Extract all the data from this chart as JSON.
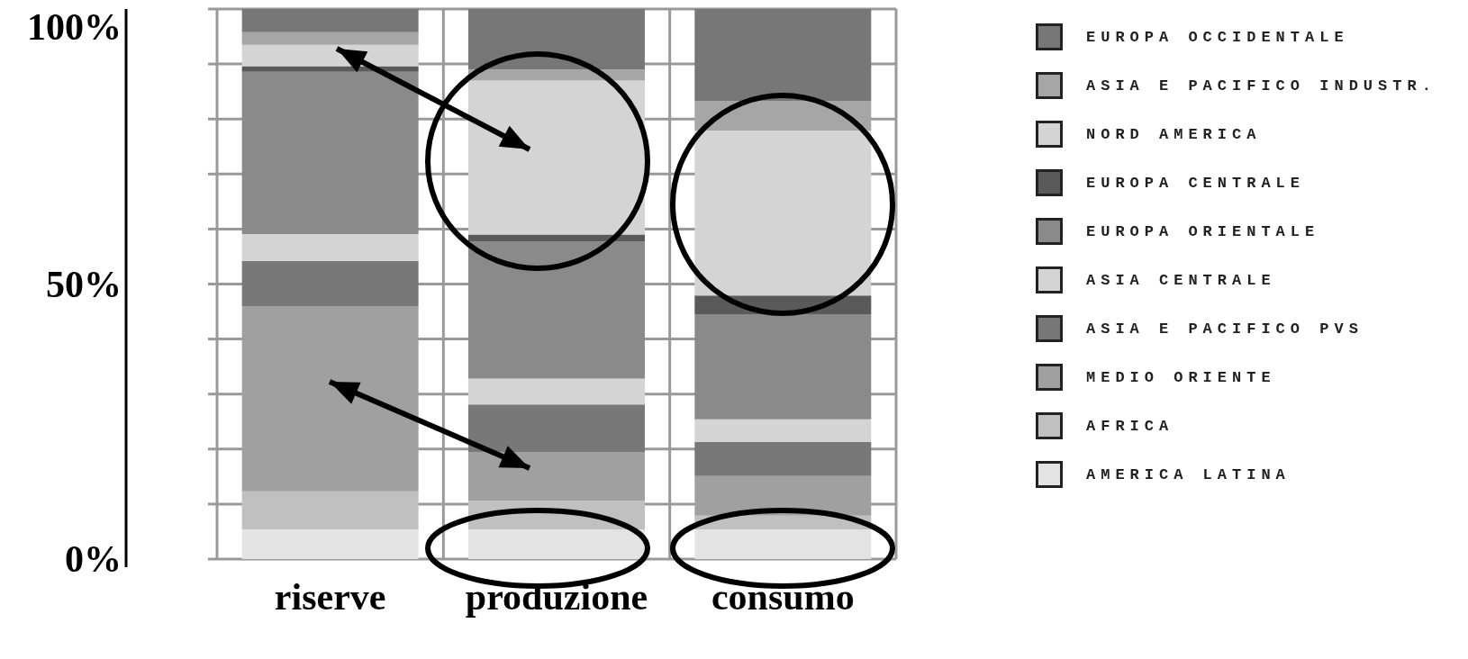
{
  "chart_data": {
    "type": "bar",
    "stacked": true,
    "categories": [
      "riserve",
      "produzione",
      "consumo"
    ],
    "series": [
      {
        "name": "AMERICA LATINA",
        "color": "#e3e3e3",
        "values": [
          5.4,
          5.4,
          5.4
        ]
      },
      {
        "name": "AFRICA",
        "color": "#c0c0c0",
        "values": [
          6.9,
          5.2,
          2.5
        ]
      },
      {
        "name": "MEDIO ORIENTE",
        "color": "#a0a0a0",
        "values": [
          33.7,
          8.8,
          7.2
        ]
      },
      {
        "name": "ASIA E PACIFICO PVS",
        "color": "#787878",
        "values": [
          8.2,
          8.7,
          6.2
        ]
      },
      {
        "name": "ASIA CENTRALE",
        "color": "#d4d4d4",
        "values": [
          4.9,
          4.7,
          4.1
        ]
      },
      {
        "name": "EUROPA ORIENTALE",
        "color": "#8a8a8a",
        "values": [
          29.5,
          24.9,
          19.1
        ]
      },
      {
        "name": "EUROPA CENTRALE",
        "color": "#5a5a5a",
        "values": [
          1,
          1.3,
          3.4
        ]
      },
      {
        "name": "NORD AMERICA",
        "color": "#d4d4d4",
        "values": [
          3.9,
          28,
          30
        ]
      },
      {
        "name": "ASIA E PACIFICO INDUSTR.",
        "color": "#a6a6a6",
        "values": [
          2.3,
          2,
          5.4
        ]
      },
      {
        "name": "EUROPA OCCIDENTALE",
        "color": "#777777",
        "values": [
          4.3,
          11,
          16.7
        ]
      }
    ],
    "ylim": [
      0,
      100
    ],
    "yticks": [
      {
        "value": 0,
        "label": "0%"
      },
      {
        "value": 10,
        "label": null
      },
      {
        "value": 20,
        "label": null
      },
      {
        "value": 30,
        "label": null
      },
      {
        "value": 40,
        "label": null
      },
      {
        "value": 50,
        "label": "50%"
      },
      {
        "value": 60,
        "label": null
      },
      {
        "value": 70,
        "label": null
      },
      {
        "value": 80,
        "label": null
      },
      {
        "value": 90,
        "label": null
      },
      {
        "value": 100,
        "label": "100%"
      }
    ],
    "grid": true,
    "legend": "right"
  }
}
